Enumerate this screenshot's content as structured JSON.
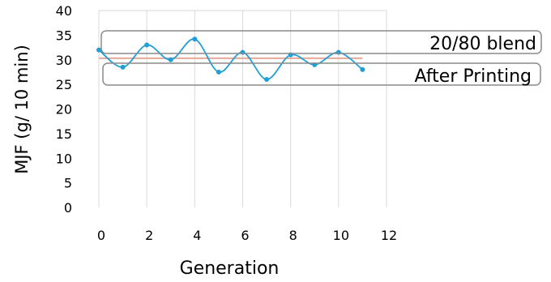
{
  "chart_data": {
    "type": "line",
    "xlabel": "Generation",
    "ylabel": "MJF (g/ 10 min)",
    "xlim": [
      0,
      12
    ],
    "ylim": [
      0,
      40
    ],
    "x_ticks": [
      "0",
      "2",
      "4",
      "6",
      "8",
      "10",
      "12"
    ],
    "y_ticks": [
      "0",
      "5",
      "10",
      "15",
      "20",
      "25",
      "30",
      "35",
      "40"
    ],
    "grid": "vertical",
    "series": [
      {
        "name": "After Printing",
        "color": "#1f9fd6",
        "smooth": true,
        "markers": true,
        "x": [
          0,
          1,
          2,
          3,
          4,
          5,
          6,
          7,
          8,
          9,
          10,
          11
        ],
        "y": [
          32.0,
          28.5,
          33.0,
          30.0,
          34.2,
          27.5,
          31.5,
          26.0,
          31.0,
          29.0,
          31.5,
          28.0
        ]
      },
      {
        "name": "20/80 blend",
        "color": "#e8a898",
        "smooth": false,
        "markers": false,
        "x": [
          0,
          11
        ],
        "y": [
          30.3,
          30.3
        ]
      }
    ],
    "annotations": [
      {
        "text": "20/80 blend",
        "target_series": 1
      },
      {
        "text": "After Printing",
        "target_series": 0
      }
    ]
  }
}
